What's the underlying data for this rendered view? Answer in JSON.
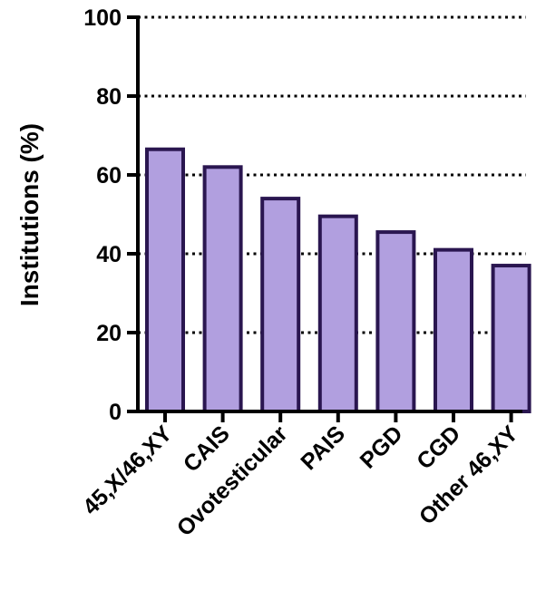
{
  "chart_data": {
    "type": "bar",
    "title": "",
    "xlabel": "",
    "ylabel": "Institutions (%)",
    "categories": [
      "45,X/46,XY",
      "CAIS",
      "Ovotesticular",
      "PAIS",
      "PGD",
      "CGD",
      "Other 46,XY"
    ],
    "values": [
      66.5,
      62,
      54,
      49.5,
      45.5,
      41,
      37
    ],
    "ylim": [
      0,
      100
    ],
    "yticks": [
      0,
      20,
      40,
      60,
      80,
      100
    ],
    "ytick_labels": [
      "0",
      "20",
      "40",
      "60",
      "80",
      "100"
    ],
    "grid": "horizontal dotted",
    "colors": {
      "bar_fill": "#b19fdf",
      "bar_stroke": "#2a1650",
      "axis": "#000000",
      "grid": "#000000"
    }
  }
}
